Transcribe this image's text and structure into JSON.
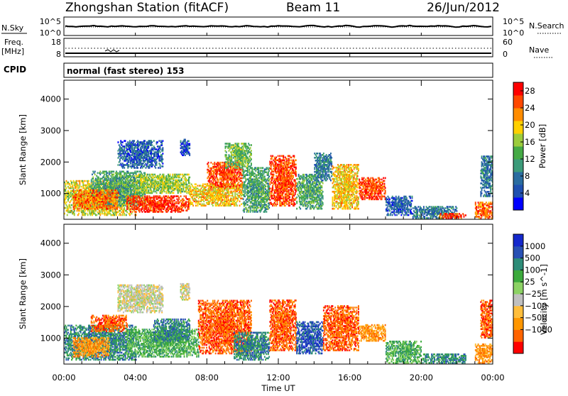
{
  "header": {
    "station": "Zhongshan Station (fitACF)",
    "beam": "Beam 11",
    "date": "26/Jun/2012"
  },
  "top_panels": {
    "nsky_label": "N.Sky",
    "nsky_ticks": [
      "10^5",
      "10^0"
    ],
    "nsearch_label": "N.Search",
    "nsearch_ticks": [
      "10^5",
      "10^0"
    ],
    "freq_label": "Freq.",
    "freq_unit": "[MHz]",
    "freq_ticks": [
      "18",
      "8"
    ],
    "nave_label": "Nave",
    "nave_ticks": [
      "60",
      "0"
    ],
    "cpid_label": "CPID",
    "cpid_text": "normal (fast stereo) 153"
  },
  "colors": {
    "power": [
      "#0000ff",
      "#1f50b0",
      "#2a6ca0",
      "#3c9b7a",
      "#45aa45",
      "#9ccc3c",
      "#ffd000",
      "#ff8c00",
      "#ff4800",
      "#ff0000"
    ],
    "velocity": [
      "#ff0000",
      "#ff6400",
      "#ff9600",
      "#ffbe3c",
      "#c0c0c0",
      "#8cd264",
      "#3caa3c",
      "#2d8c78",
      "#2850b4",
      "#1428cc"
    ]
  },
  "chart_data": [
    {
      "type": "heatmap",
      "name": "Power",
      "ylabel": "Slant Range [km]",
      "ylim": [
        180,
        4600
      ],
      "xlim": [
        0,
        24
      ],
      "yticks": [
        "1000",
        "2000",
        "3000",
        "4000"
      ],
      "ytick_values": [
        1000,
        2000,
        3000,
        4000
      ],
      "colorbar_label": "Power [dB]",
      "colorbar_ticks": [
        "4",
        "8",
        "12",
        "16",
        "20",
        "24",
        "28"
      ],
      "colorbar_range": [
        0,
        30
      ],
      "regions": [
        {
          "t0": 0.0,
          "t1": 4.0,
          "r0": 300,
          "r1": 1400,
          "v": 18
        },
        {
          "t0": 1.5,
          "t1": 4.5,
          "r0": 600,
          "r1": 1700,
          "v": 12
        },
        {
          "t0": 0.5,
          "t1": 3.0,
          "r0": 500,
          "r1": 1100,
          "v": 24
        },
        {
          "t0": 3.5,
          "t1": 7.0,
          "r0": 400,
          "r1": 900,
          "v": 27
        },
        {
          "t0": 3.0,
          "t1": 5.5,
          "r0": 1800,
          "r1": 2700,
          "v": 6
        },
        {
          "t0": 6.5,
          "t1": 7.0,
          "r0": 2200,
          "r1": 2700,
          "v": 5
        },
        {
          "t0": 4.0,
          "t1": 7.0,
          "r0": 1000,
          "r1": 1600,
          "v": 16
        },
        {
          "t0": 7.0,
          "t1": 10.0,
          "r0": 600,
          "r1": 1300,
          "v": 20
        },
        {
          "t0": 8.0,
          "t1": 10.0,
          "r0": 1200,
          "r1": 2000,
          "v": 26
        },
        {
          "t0": 9.0,
          "t1": 10.5,
          "r0": 1800,
          "r1": 2600,
          "v": 14
        },
        {
          "t0": 10.0,
          "t1": 11.5,
          "r0": 400,
          "r1": 1800,
          "v": 12
        },
        {
          "t0": 11.5,
          "t1": 13.0,
          "r0": 600,
          "r1": 2200,
          "v": 26
        },
        {
          "t0": 13.0,
          "t1": 14.5,
          "r0": 500,
          "r1": 1600,
          "v": 12
        },
        {
          "t0": 14.0,
          "t1": 15.0,
          "r0": 1400,
          "r1": 2300,
          "v": 8
        },
        {
          "t0": 15.0,
          "t1": 16.5,
          "r0": 500,
          "r1": 1900,
          "v": 20
        },
        {
          "t0": 16.5,
          "t1": 18.0,
          "r0": 800,
          "r1": 1500,
          "v": 26
        },
        {
          "t0": 18.0,
          "t1": 19.5,
          "r0": 300,
          "r1": 900,
          "v": 6
        },
        {
          "t0": 19.5,
          "t1": 22.0,
          "r0": 200,
          "r1": 600,
          "v": 8
        },
        {
          "t0": 21.0,
          "t1": 22.5,
          "r0": 200,
          "r1": 350,
          "v": 26
        },
        {
          "t0": 23.0,
          "t1": 24.0,
          "r0": 200,
          "r1": 700,
          "v": 24
        },
        {
          "t0": 23.3,
          "t1": 24.0,
          "r0": 900,
          "r1": 2200,
          "v": 8
        }
      ]
    },
    {
      "type": "heatmap",
      "name": "Velocity",
      "ylabel": "Slant Range [km]",
      "ylim": [
        180,
        4600
      ],
      "xlim": [
        0,
        24
      ],
      "yticks": [
        "1000",
        "2000",
        "3000",
        "4000"
      ],
      "ytick_values": [
        1000,
        2000,
        3000,
        4000
      ],
      "colorbar_label": "Velocity [m s^-1]",
      "colorbar_ticks": [
        "1000",
        "500",
        "100",
        "25",
        "−25",
        "−100",
        "−500",
        "−1000"
      ],
      "regions": [
        {
          "t0": 0.0,
          "t1": 4.0,
          "r0": 300,
          "r1": 1400,
          "v": 7
        },
        {
          "t0": 0.5,
          "t1": 2.5,
          "r0": 400,
          "r1": 1000,
          "v": 2
        },
        {
          "t0": 1.5,
          "t1": 3.5,
          "r0": 1200,
          "r1": 1700,
          "v": 1
        },
        {
          "t0": 3.0,
          "t1": 5.5,
          "r0": 1800,
          "r1": 2700,
          "v": 4
        },
        {
          "t0": 3.5,
          "t1": 7.5,
          "r0": 400,
          "r1": 1300,
          "v": 6
        },
        {
          "t0": 5.0,
          "t1": 7.0,
          "r0": 900,
          "r1": 1600,
          "v": 7
        },
        {
          "t0": 6.5,
          "t1": 7.0,
          "r0": 2200,
          "r1": 2700,
          "v": 4
        },
        {
          "t0": 7.5,
          "t1": 10.5,
          "r0": 500,
          "r1": 2200,
          "v": 1
        },
        {
          "t0": 9.5,
          "t1": 11.5,
          "r0": 300,
          "r1": 1200,
          "v": 7
        },
        {
          "t0": 11.5,
          "t1": 13.0,
          "r0": 600,
          "r1": 2200,
          "v": 1
        },
        {
          "t0": 13.0,
          "t1": 14.5,
          "r0": 500,
          "r1": 1500,
          "v": 8
        },
        {
          "t0": 14.5,
          "t1": 16.5,
          "r0": 600,
          "r1": 2000,
          "v": 1
        },
        {
          "t0": 16.5,
          "t1": 18.0,
          "r0": 900,
          "r1": 1400,
          "v": 2
        },
        {
          "t0": 18.0,
          "t1": 20.0,
          "r0": 200,
          "r1": 900,
          "v": 6
        },
        {
          "t0": 20.0,
          "t1": 22.5,
          "r0": 200,
          "r1": 500,
          "v": 7
        },
        {
          "t0": 23.0,
          "t1": 24.0,
          "r0": 200,
          "r1": 800,
          "v": 2
        },
        {
          "t0": 23.3,
          "t1": 24.0,
          "r0": 1000,
          "r1": 2200,
          "v": 1
        }
      ]
    }
  ],
  "x_axis": {
    "ticks": [
      "00:00",
      "04:00",
      "08:00",
      "12:00",
      "16:00",
      "20:00",
      "00:00"
    ],
    "tick_hours": [
      0,
      4,
      8,
      12,
      16,
      20,
      24
    ],
    "label": "Time UT"
  }
}
